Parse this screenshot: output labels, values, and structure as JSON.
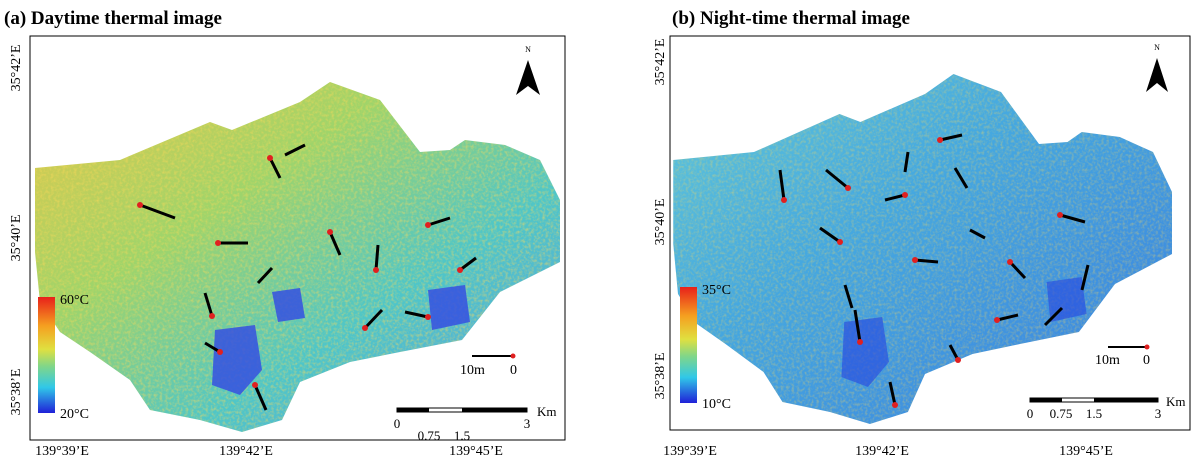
{
  "panels": [
    {
      "title": "(a) Daytime thermal image",
      "lat_labels": [
        "35°42’E",
        "35°40’E",
        "35°38’E"
      ],
      "lon_labels": [
        "139°39’E",
        "139°42’E",
        "139°45’E"
      ],
      "colorbar": {
        "max": "60°C",
        "min": "20°C"
      },
      "north": "N",
      "small_scale": [
        "10m",
        "0"
      ],
      "scale": {
        "ticks": [
          "0",
          "0.75",
          "1.5",
          "3"
        ],
        "unit": "Km"
      }
    },
    {
      "title": "(b) Night-time thermal image",
      "lat_labels": [
        "35°42’E",
        "35°40’E",
        "35°38’E"
      ],
      "lon_labels": [
        "139°39’E",
        "139°42’E",
        "139°45’E"
      ],
      "colorbar": {
        "max": "35°C",
        "min": "10°C"
      },
      "north": "N",
      "small_scale": [
        "10m",
        "0"
      ],
      "scale": {
        "ticks": [
          "0",
          "0.75",
          "1.5",
          "3"
        ],
        "unit": "Km"
      }
    }
  ]
}
